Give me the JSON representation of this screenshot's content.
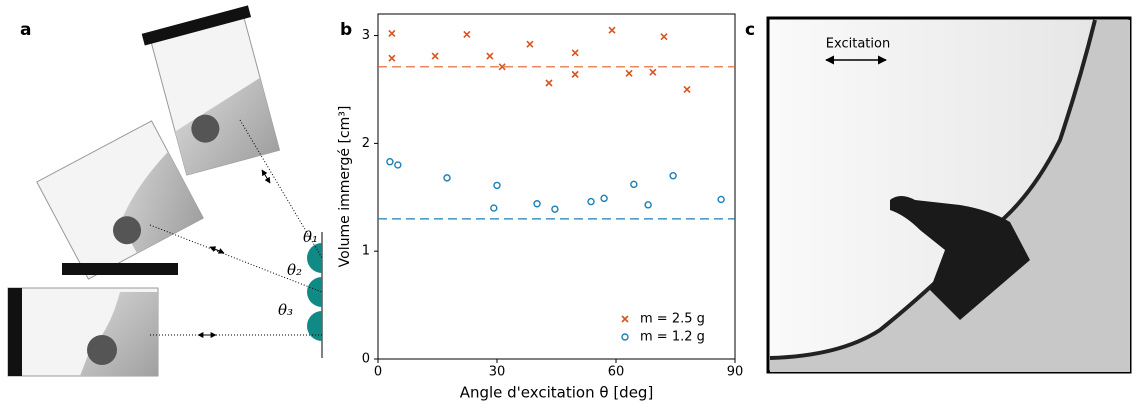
{
  "panel_labels": [
    "a",
    "b",
    "c"
  ],
  "diagram": {
    "angle_labels": [
      "θ₁",
      "θ₂",
      "θ₃"
    ]
  },
  "photo": {
    "label": "Excitation"
  },
  "chart_data": {
    "type": "scatter",
    "xlabel": "Angle d'excitation θ [deg]",
    "ylabel": "Volume immergé [cm³]",
    "xlim": [
      0,
      90
    ],
    "ylim": [
      0,
      3.2
    ],
    "xticks": [
      0,
      30,
      60,
      90
    ],
    "yticks": [
      0,
      1,
      2,
      3
    ],
    "legend": "lower right",
    "series": [
      {
        "name": "m = 2.5 g",
        "color": "#d9541e",
        "marker": "x",
        "x": [
          3.5,
          3.5,
          14.4,
          22.4,
          28.2,
          31.3,
          38.3,
          43.1,
          49.7,
          49.7,
          59.0,
          63.3,
          69.3,
          72.1,
          77.9
        ],
        "values": [
          3.02,
          2.79,
          2.81,
          3.01,
          2.81,
          2.71,
          2.92,
          2.56,
          2.84,
          2.64,
          3.05,
          2.65,
          2.66,
          2.99,
          2.5
        ]
      },
      {
        "name": "m = 1.2 g",
        "color": "#1a7fb5",
        "marker": "o",
        "x": [
          3.0,
          5.0,
          17.4,
          30.0,
          29.2,
          40.1,
          44.6,
          53.7,
          57.0,
          64.5,
          68.1,
          74.4,
          86.5
        ],
        "values": [
          1.83,
          1.8,
          1.68,
          1.61,
          1.4,
          1.44,
          1.39,
          1.46,
          1.49,
          1.62,
          1.43,
          1.7,
          1.48
        ]
      }
    ],
    "reference_lines": [
      {
        "value": 2.71,
        "color": "#e0622a"
      },
      {
        "value": 1.3,
        "color": "#1a7fb5"
      }
    ]
  }
}
